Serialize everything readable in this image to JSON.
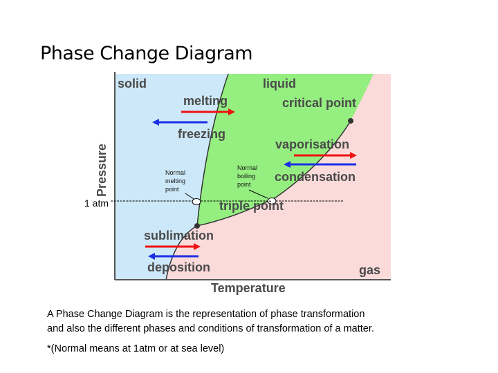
{
  "title": "Phase Change Diagram",
  "diagram": {
    "phases": {
      "solid": "solid",
      "liquid": "liquid",
      "gas": "gas"
    },
    "processes": {
      "melting": "melting",
      "freezing": "freezing",
      "vaporisation": "vaporisation",
      "condensation": "condensation",
      "sublimation": "sublimation",
      "deposition": "deposition"
    },
    "points": {
      "critical": "critical point",
      "triple": "triple point",
      "normal_melting": [
        "Normal",
        "melting",
        "point"
      ],
      "normal_boiling": [
        "Normal",
        "boiling",
        "point"
      ]
    },
    "pressure_line": "1 atm",
    "axes": {
      "y": "Pressure",
      "x": "Temperature"
    }
  },
  "caption": [
    "A Phase Change Diagram is the representation of phase transformation",
    "and also the different phases and conditions of transformation of a matter."
  ],
  "note": "*(Normal means at 1atm or at sea level)"
}
